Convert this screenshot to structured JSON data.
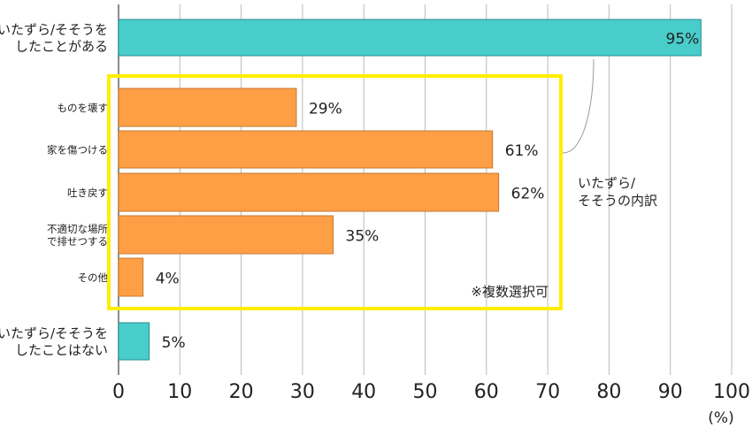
{
  "chart_data": {
    "type": "bar",
    "orientation": "horizontal",
    "categories": [
      [
        "いたずら/そそうを",
        "したことがある"
      ],
      [
        "ものを壊す"
      ],
      [
        "家を傷つける"
      ],
      [
        "吐き戻す"
      ],
      [
        "不適切な場所",
        "で排せつする"
      ],
      [
        "その他"
      ],
      [
        "いたずら/そそうを",
        "したことはない"
      ]
    ],
    "values": [
      95,
      29,
      61,
      62,
      35,
      4,
      5
    ],
    "data_labels": [
      "95%",
      "29%",
      "61%",
      "62%",
      "35%",
      "4%",
      "5%"
    ],
    "bar_colors": [
      "#48CDCB",
      "#FF9F45",
      "#FF9F45",
      "#FF9F45",
      "#FF9F45",
      "#FF9F45",
      "#48CDCB"
    ],
    "xlim": [
      0,
      100
    ],
    "xticks": [
      "0",
      "10",
      "20",
      "30",
      "40",
      "50",
      "60",
      "70",
      "80",
      "90",
      "100"
    ],
    "xlabel": "(%)",
    "grid": "vertical",
    "annotations": {
      "breakdown_label": [
        "いたずら/",
        "そそうの内訳"
      ],
      "note": "※複数選択可",
      "highlight_color": "#FFEE00"
    }
  }
}
